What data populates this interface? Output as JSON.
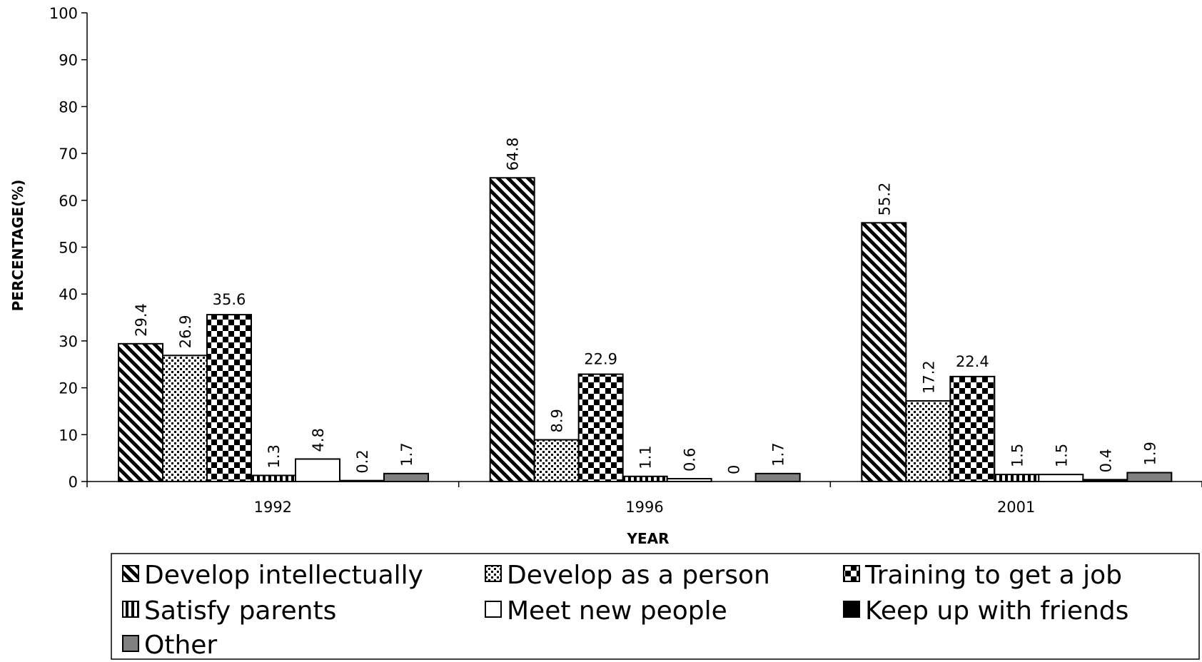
{
  "chart_data": {
    "type": "bar",
    "xlabel": "YEAR",
    "ylabel": "PERCENTAGE(%)",
    "ylim": [
      0,
      100
    ],
    "yticks": [
      0,
      10,
      20,
      30,
      40,
      50,
      60,
      70,
      80,
      90,
      100
    ],
    "categories": [
      "1992",
      "1996",
      "2001"
    ],
    "grid": false,
    "legend_position": "bottom",
    "series": [
      {
        "name": "Develop intellectually",
        "pattern": "diagonal-stripes",
        "values": [
          29.4,
          64.8,
          55.2
        ],
        "labels": [
          "29.4",
          "64.8",
          "55.2"
        ]
      },
      {
        "name": "Develop as a person",
        "pattern": "dots",
        "values": [
          26.9,
          8.9,
          17.2
        ],
        "labels": [
          "26.9",
          "8.9",
          "17.2"
        ]
      },
      {
        "name": "Training to get a job",
        "pattern": "checkerboard",
        "values": [
          35.6,
          22.9,
          22.4
        ],
        "labels": [
          "35.6",
          "22.9",
          "22.4"
        ]
      },
      {
        "name": "Satisfy parents",
        "pattern": "vertical-stripes",
        "values": [
          1.3,
          1.1,
          1.5
        ],
        "labels": [
          "1.3",
          "1.1",
          "1.5"
        ]
      },
      {
        "name": "Meet new people",
        "pattern": "white",
        "color": "#ffffff",
        "values": [
          4.8,
          0.6,
          1.5
        ],
        "labels": [
          "4.8",
          "0.6",
          "1.5"
        ]
      },
      {
        "name": "Keep up with friends",
        "pattern": "black",
        "color": "#000000",
        "values": [
          0.2,
          0,
          0.4
        ],
        "labels": [
          "0.2",
          "0",
          "0.4"
        ]
      },
      {
        "name": "Other",
        "pattern": "gray",
        "color": "#808080",
        "values": [
          1.7,
          1.7,
          1.9
        ],
        "labels": [
          "1.7",
          "1.7",
          "1.9"
        ]
      }
    ]
  }
}
